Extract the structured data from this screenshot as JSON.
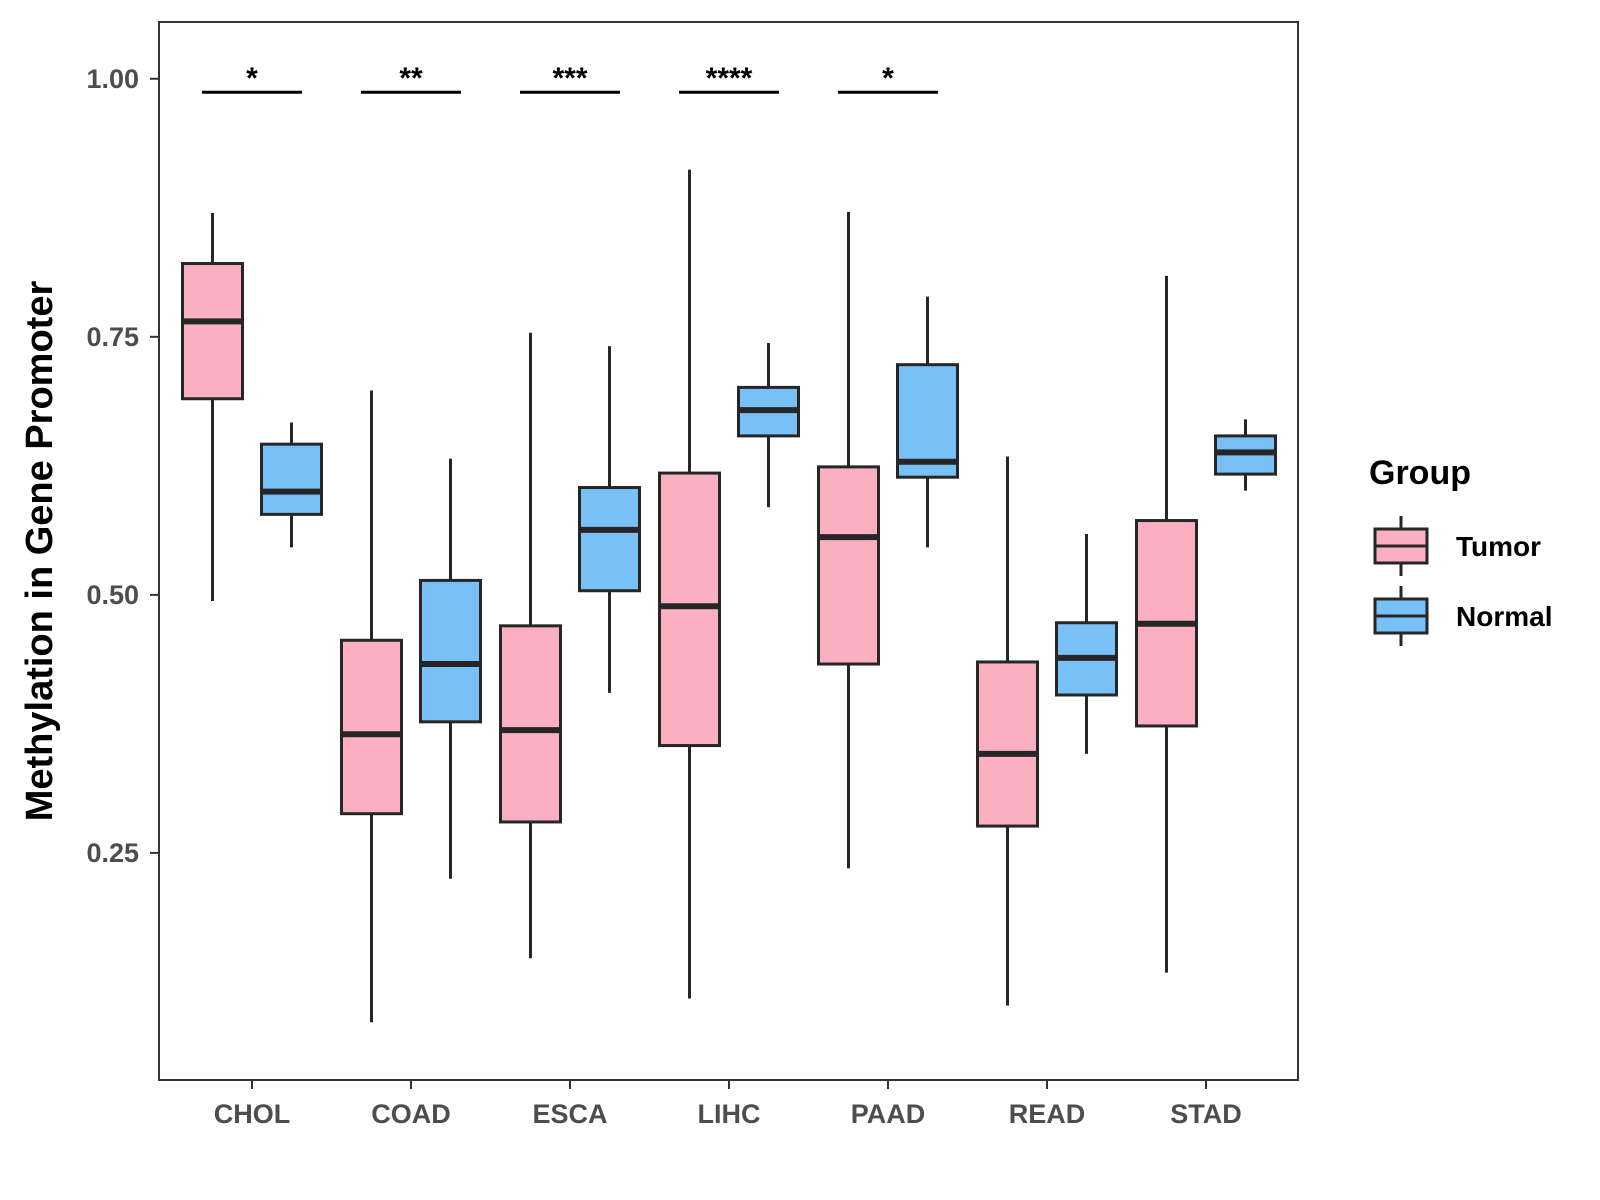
{
  "chart_data": {
    "type": "boxplot",
    "title": "",
    "xlabel": "",
    "ylabel": "Methylation in Gene Promoter",
    "ylim": [
      0.03,
      1.055
    ],
    "yticks": [
      0.25,
      0.5,
      0.75,
      1.0
    ],
    "ytick_labels": [
      "0.25",
      "0.50",
      "0.75",
      "1.00"
    ],
    "categories": [
      "CHOL",
      "COAD",
      "ESCA",
      "LIHC",
      "PAAD",
      "READ",
      "STAD"
    ],
    "legend": {
      "title": "Group",
      "position": "right",
      "entries": [
        {
          "name": "Tumor",
          "color": "#FBB0C2"
        },
        {
          "name": "Normal",
          "color": "#78C0F6"
        }
      ]
    },
    "series": [
      {
        "name": "Tumor",
        "color": "#FBB0C2",
        "boxes": [
          {
            "min": 0.494,
            "q1": 0.69,
            "median": 0.765,
            "q3": 0.821,
            "max": 0.87
          },
          {
            "min": 0.086,
            "q1": 0.288,
            "median": 0.365,
            "q3": 0.456,
            "max": 0.698
          },
          {
            "min": 0.148,
            "q1": 0.28,
            "median": 0.369,
            "q3": 0.47,
            "max": 0.754
          },
          {
            "min": 0.109,
            "q1": 0.354,
            "median": 0.489,
            "q3": 0.618,
            "max": 0.912
          },
          {
            "min": 0.235,
            "q1": 0.433,
            "median": 0.556,
            "q3": 0.624,
            "max": 0.871
          },
          {
            "min": 0.102,
            "q1": 0.276,
            "median": 0.346,
            "q3": 0.435,
            "max": 0.634
          },
          {
            "min": 0.134,
            "q1": 0.373,
            "median": 0.472,
            "q3": 0.572,
            "max": 0.809
          }
        ]
      },
      {
        "name": "Normal",
        "color": "#78C0F6",
        "boxes": [
          {
            "min": 0.546,
            "q1": 0.578,
            "median": 0.6,
            "q3": 0.646,
            "max": 0.667
          },
          {
            "min": 0.225,
            "q1": 0.377,
            "median": 0.433,
            "q3": 0.514,
            "max": 0.632
          },
          {
            "min": 0.405,
            "q1": 0.504,
            "median": 0.563,
            "q3": 0.604,
            "max": 0.741
          },
          {
            "min": 0.585,
            "q1": 0.654,
            "median": 0.679,
            "q3": 0.701,
            "max": 0.744
          },
          {
            "min": 0.546,
            "q1": 0.614,
            "median": 0.629,
            "q3": 0.723,
            "max": 0.789
          },
          {
            "min": 0.346,
            "q1": 0.403,
            "median": 0.439,
            "q3": 0.473,
            "max": 0.559
          },
          {
            "min": 0.601,
            "q1": 0.617,
            "median": 0.638,
            "q3": 0.654,
            "max": 0.67
          }
        ]
      }
    ],
    "significance": [
      {
        "category": "CHOL",
        "label": "*",
        "y": 0.987
      },
      {
        "category": "COAD",
        "label": "**",
        "y": 0.987
      },
      {
        "category": "ESCA",
        "label": "***",
        "y": 0.987
      },
      {
        "category": "LIHC",
        "label": "****",
        "y": 0.987
      },
      {
        "category": "PAAD",
        "label": "*",
        "y": 0.987
      }
    ]
  }
}
